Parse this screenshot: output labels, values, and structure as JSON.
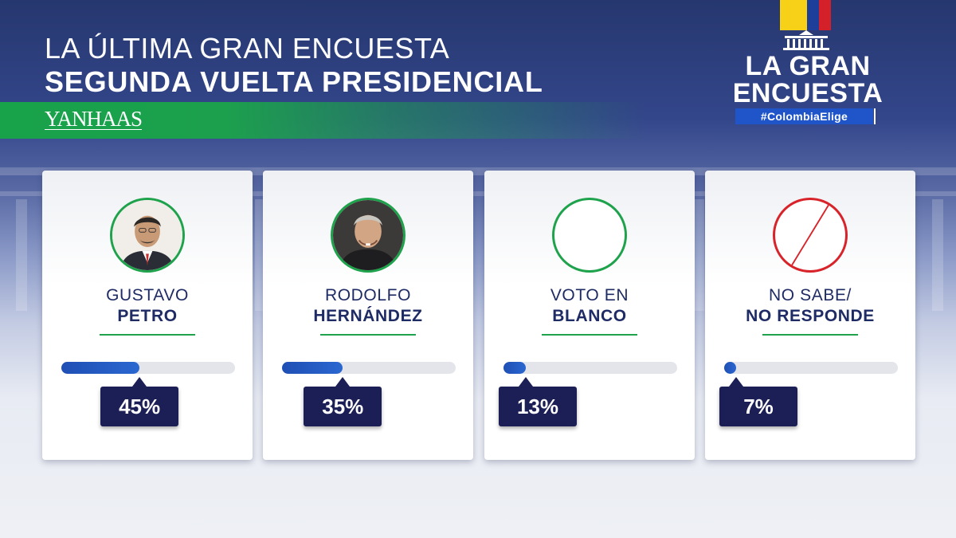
{
  "header": {
    "title_line1": "LA ÚLTIMA GRAN ENCUESTA",
    "title_line2": "SEGUNDA VUELTA PRESIDENCIAL",
    "pollster": "YANHAAS"
  },
  "brand": {
    "line1": "LA GRAN",
    "line2": "ENCUESTA",
    "hashtag": "#ColombiaElige"
  },
  "colors": {
    "accent_green": "#1fa24c",
    "bar_blue": "#2a67d0",
    "badge_navy": "#1b1f56",
    "no_answer_red": "#d8232a"
  },
  "chart_data": {
    "type": "bar",
    "categories": [
      "GUSTAVO PETRO",
      "RODOLFO HERNÁNDEZ",
      "VOTO EN BLANCO",
      "NO SABE/ NO RESPONDE"
    ],
    "values": [
      45,
      35,
      13,
      7
    ],
    "unit": "%",
    "ylim": [
      0,
      100
    ],
    "items": [
      {
        "first": "GUSTAVO",
        "last": "PETRO",
        "value": 45,
        "label": "45%",
        "icon": "candidate-photo"
      },
      {
        "first": "RODOLFO",
        "last": "HERNÁNDEZ",
        "value": 35,
        "label": "35%",
        "icon": "candidate-photo"
      },
      {
        "first": "VOTO EN",
        "last": "BLANCO",
        "value": 13,
        "label": "13%",
        "icon": "blank-circle-icon"
      },
      {
        "first": "NO SABE/",
        "last": "NO RESPONDE",
        "value": 7,
        "label": "7%",
        "icon": "crossed-circle-icon"
      }
    ]
  }
}
